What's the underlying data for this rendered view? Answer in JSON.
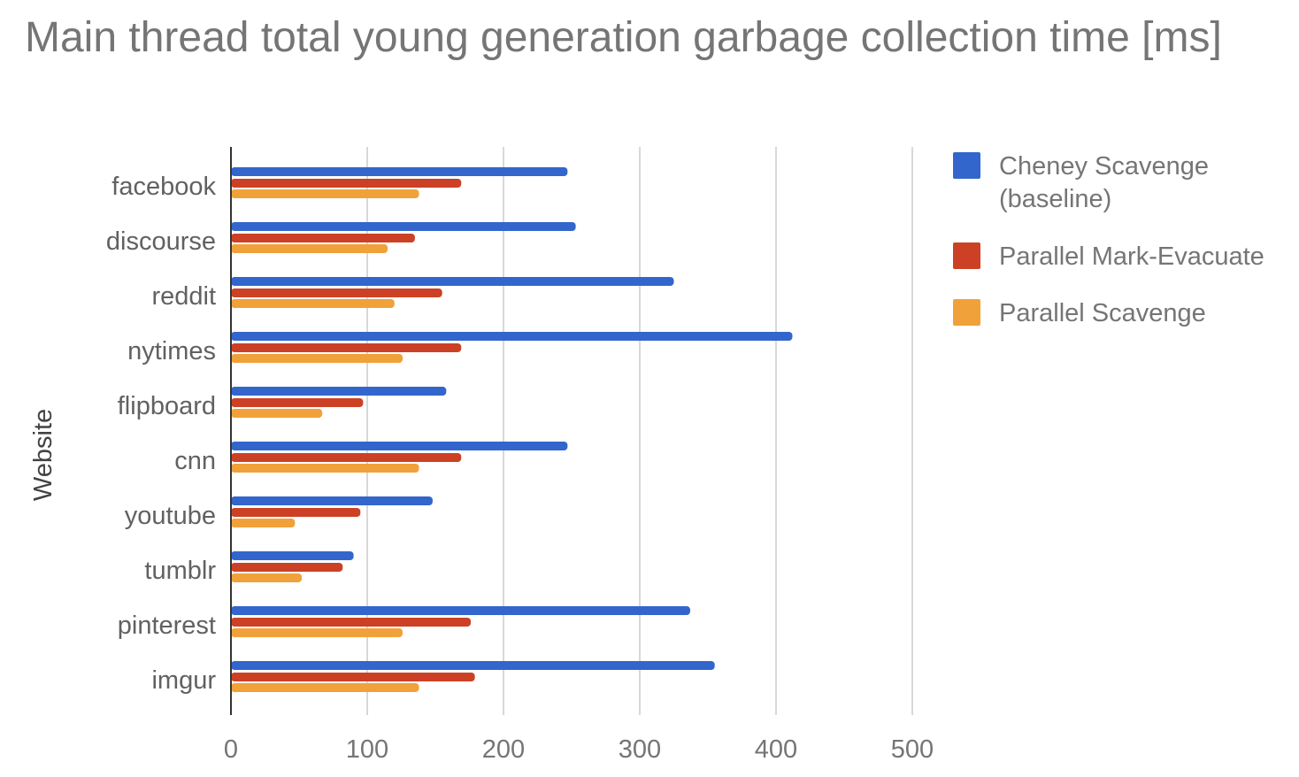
{
  "chart_data": {
    "type": "bar",
    "orientation": "horizontal",
    "title": "Main thread total young generation garbage collection time [ms]",
    "xlabel": "",
    "ylabel": "Website",
    "xlim": [
      0,
      500
    ],
    "xticks": [
      0,
      100,
      200,
      300,
      400,
      500
    ],
    "grid": true,
    "legend_position": "right",
    "categories": [
      "facebook",
      "discourse",
      "reddit",
      "nytimes",
      "flipboard",
      "cnn",
      "youtube",
      "tumblr",
      "pinterest",
      "imgur"
    ],
    "series": [
      {
        "name": "Cheney Scavenge",
        "name_line2": "(baseline)",
        "color": "#3366cc",
        "values": [
          247,
          253,
          325,
          412,
          158,
          247,
          148,
          90,
          337,
          355
        ]
      },
      {
        "name": "Parallel Mark-Evacuate",
        "color": "#cc4125",
        "values": [
          169,
          135,
          155,
          169,
          97,
          169,
          95,
          82,
          176,
          179
        ]
      },
      {
        "name": "Parallel Scavenge",
        "color": "#f1a13a",
        "values": [
          138,
          115,
          120,
          126,
          67,
          138,
          47,
          52,
          126,
          138
        ]
      }
    ]
  }
}
